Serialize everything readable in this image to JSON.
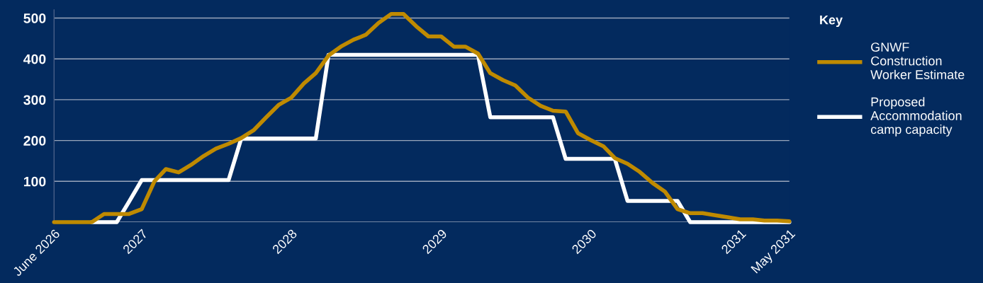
{
  "chart_data": {
    "type": "line",
    "legend_title": "Key",
    "legend": "right",
    "grid": "y",
    "x": [
      "2026-06",
      "2026-07",
      "2026-08",
      "2026-09",
      "2026-10",
      "2026-11",
      "2026-12",
      "2027-01",
      "2027-02",
      "2027-03",
      "2027-04",
      "2027-05",
      "2027-06",
      "2027-07",
      "2027-08",
      "2027-09",
      "2027-10",
      "2027-11",
      "2027-12",
      "2028-01",
      "2028-02",
      "2028-03",
      "2028-04",
      "2028-05",
      "2028-06",
      "2028-07",
      "2028-08",
      "2028-09",
      "2028-10",
      "2028-11",
      "2028-12",
      "2029-01",
      "2029-02",
      "2029-03",
      "2029-04",
      "2029-05",
      "2029-06",
      "2029-07",
      "2029-08",
      "2029-09",
      "2029-10",
      "2029-11",
      "2029-12",
      "2030-01",
      "2030-02",
      "2030-03",
      "2030-04",
      "2030-05",
      "2030-06",
      "2030-07",
      "2030-08",
      "2030-09",
      "2030-10",
      "2030-11",
      "2030-12",
      "2031-01",
      "2031-02",
      "2031-03",
      "2031-04",
      "2031-05"
    ],
    "series": [
      {
        "name": "GNWF\nConstruction\nWorker Estimate",
        "color": "#bf8a00",
        "values": [
          0,
          0,
          0,
          0,
          20,
          20,
          20,
          32,
          100,
          130,
          122,
          140,
          162,
          180,
          192,
          206,
          225,
          257,
          287,
          305,
          340,
          365,
          408,
          430,
          447,
          459,
          488,
          510,
          510,
          480,
          455,
          455,
          430,
          430,
          413,
          365,
          348,
          335,
          305,
          285,
          273,
          271,
          218,
          201,
          186,
          157,
          143,
          123,
          96,
          75,
          32,
          22,
          22,
          17,
          12,
          7,
          7,
          4,
          4,
          2
        ]
      },
      {
        "name": "Proposed\nAccommodation\ncamp capacity",
        "color": "#ffffff",
        "values": [
          null,
          null,
          null,
          0,
          0,
          0,
          50,
          103,
          103,
          103,
          103,
          103,
          103,
          103,
          103,
          205,
          205,
          205,
          205,
          205,
          205,
          205,
          410,
          410,
          410,
          410,
          410,
          410,
          410,
          410,
          410,
          410,
          410,
          410,
          410,
          257,
          257,
          257,
          257,
          257,
          257,
          155,
          155,
          155,
          155,
          155,
          52,
          52,
          52,
          52,
          52,
          0,
          0,
          0,
          0,
          0,
          0,
          0,
          0,
          0
        ]
      }
    ],
    "xlim": [
      "2026-06",
      "2031-05"
    ],
    "xticks": [
      {
        "value": "2026-06",
        "label": "June 2026"
      },
      {
        "value": "2027-01",
        "label": "2027"
      },
      {
        "value": "2028-01",
        "label": "2028"
      },
      {
        "value": "2029-01",
        "label": "2029"
      },
      {
        "value": "2030-01",
        "label": "2030"
      },
      {
        "value": "2031-01",
        "label": "2031"
      },
      {
        "value": "2031-05",
        "label": "May 2031"
      }
    ],
    "ylim": [
      0,
      520
    ],
    "yticks": [
      {
        "value": 0,
        "label": null
      },
      100,
      200,
      300,
      400,
      500
    ],
    "marker": "none",
    "line_style": "solid"
  }
}
